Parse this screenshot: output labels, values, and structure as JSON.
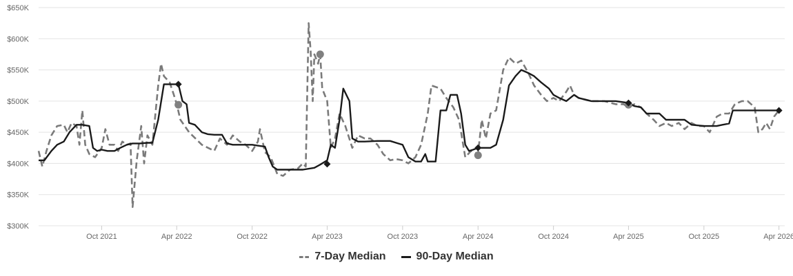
{
  "chart_data": {
    "type": "line",
    "title": "",
    "xlabel": "",
    "ylabel": "",
    "ylim": [
      300000,
      650000
    ],
    "y_ticks": [
      300000,
      350000,
      400000,
      450000,
      500000,
      550000,
      600000,
      650000
    ],
    "y_tick_labels": [
      "$300K",
      "$350K",
      "$400K",
      "$450K",
      "$500K",
      "$550K",
      "$600K",
      "$650K"
    ],
    "xlim": [
      "2021-05-01",
      "2026-04-15"
    ],
    "x_ticks": [
      "2021-10-01",
      "2022-04-01",
      "2022-10-01",
      "2023-04-01",
      "2023-10-01",
      "2024-04-01",
      "2024-10-01",
      "2025-04-01",
      "2025-10-01",
      "2026-04-01"
    ],
    "x_tick_labels": [
      "Oct 2021",
      "Apr 2022",
      "Oct 2022",
      "Apr 2023",
      "Oct 2023",
      "Apr 2024",
      "Oct 2024",
      "Apr 2025",
      "Oct 2025",
      "Apr 2026"
    ],
    "grid": "horizontal",
    "legend_position": "bottom-center",
    "series": [
      {
        "name": "7-Day Median",
        "style": "dashed",
        "color": "#7a7a7a",
        "points": [
          [
            "2021-05-01",
            420000
          ],
          [
            "2021-05-10",
            395000
          ],
          [
            "2021-05-20",
            420000
          ],
          [
            "2021-06-01",
            445000
          ],
          [
            "2021-06-15",
            460000
          ],
          [
            "2021-07-01",
            462000
          ],
          [
            "2021-07-10",
            450000
          ],
          [
            "2021-07-20",
            465000
          ],
          [
            "2021-08-01",
            460000
          ],
          [
            "2021-08-08",
            430000
          ],
          [
            "2021-08-15",
            485000
          ],
          [
            "2021-08-22",
            430000
          ],
          [
            "2021-09-01",
            415000
          ],
          [
            "2021-09-15",
            410000
          ],
          [
            "2021-10-01",
            425000
          ],
          [
            "2021-10-10",
            455000
          ],
          [
            "2021-10-20",
            430000
          ],
          [
            "2021-11-01",
            430000
          ],
          [
            "2021-11-10",
            420000
          ],
          [
            "2021-11-20",
            435000
          ],
          [
            "2021-12-01",
            430000
          ],
          [
            "2021-12-10",
            432000
          ],
          [
            "2021-12-15",
            330000
          ],
          [
            "2021-12-25",
            405000
          ],
          [
            "2022-01-05",
            460000
          ],
          [
            "2022-01-12",
            400000
          ],
          [
            "2022-01-20",
            445000
          ],
          [
            "2022-02-01",
            430000
          ],
          [
            "2022-02-15",
            525000
          ],
          [
            "2022-02-22",
            560000
          ],
          [
            "2022-03-01",
            540000
          ],
          [
            "2022-03-15",
            530000
          ],
          [
            "2022-03-25",
            510000
          ],
          [
            "2022-04-01",
            495000
          ],
          [
            "2022-04-10",
            470000
          ],
          [
            "2022-05-01",
            450000
          ],
          [
            "2022-06-01",
            430000
          ],
          [
            "2022-07-01",
            420000
          ],
          [
            "2022-07-15",
            440000
          ],
          [
            "2022-08-01",
            430000
          ],
          [
            "2022-08-15",
            445000
          ],
          [
            "2022-09-01",
            435000
          ],
          [
            "2022-09-15",
            430000
          ],
          [
            "2022-10-01",
            420000
          ],
          [
            "2022-10-15",
            435000
          ],
          [
            "2022-10-20",
            455000
          ],
          [
            "2022-11-01",
            418000
          ],
          [
            "2022-11-15",
            410000
          ],
          [
            "2022-12-01",
            383000
          ],
          [
            "2022-12-15",
            380000
          ],
          [
            "2023-01-01",
            390000
          ],
          [
            "2023-01-20",
            392000
          ],
          [
            "2023-02-01",
            400000
          ],
          [
            "2023-02-08",
            395000
          ],
          [
            "2023-02-15",
            625000
          ],
          [
            "2023-02-20",
            580000
          ],
          [
            "2023-02-25",
            500000
          ],
          [
            "2023-03-01",
            575000
          ],
          [
            "2023-03-10",
            560000
          ],
          [
            "2023-03-15",
            575000
          ],
          [
            "2023-03-20",
            520000
          ],
          [
            "2023-04-01",
            500000
          ],
          [
            "2023-04-10",
            425000
          ],
          [
            "2023-04-20",
            440000
          ],
          [
            "2023-05-01",
            480000
          ],
          [
            "2023-05-15",
            460000
          ],
          [
            "2023-06-01",
            425000
          ],
          [
            "2023-06-15",
            445000
          ],
          [
            "2023-07-01",
            440000
          ],
          [
            "2023-07-15",
            440000
          ],
          [
            "2023-08-01",
            430000
          ],
          [
            "2023-08-15",
            415000
          ],
          [
            "2023-09-01",
            405000
          ],
          [
            "2023-09-15",
            407000
          ],
          [
            "2023-10-01",
            405000
          ],
          [
            "2023-10-15",
            400000
          ],
          [
            "2023-11-01",
            410000
          ],
          [
            "2023-11-15",
            430000
          ],
          [
            "2023-12-01",
            480000
          ],
          [
            "2023-12-10",
            525000
          ],
          [
            "2024-01-01",
            520000
          ],
          [
            "2024-01-15",
            505000
          ],
          [
            "2024-02-01",
            490000
          ],
          [
            "2024-02-15",
            470000
          ],
          [
            "2024-03-01",
            410000
          ],
          [
            "2024-03-15",
            420000
          ],
          [
            "2024-04-01",
            415000
          ],
          [
            "2024-04-10",
            470000
          ],
          [
            "2024-04-20",
            440000
          ],
          [
            "2024-05-01",
            480000
          ],
          [
            "2024-05-15",
            485000
          ],
          [
            "2024-06-01",
            550000
          ],
          [
            "2024-06-15",
            570000
          ],
          [
            "2024-07-01",
            560000
          ],
          [
            "2024-07-15",
            565000
          ],
          [
            "2024-08-01",
            545000
          ],
          [
            "2024-08-15",
            525000
          ],
          [
            "2024-09-01",
            510000
          ],
          [
            "2024-09-15",
            500000
          ],
          [
            "2024-10-01",
            505000
          ],
          [
            "2024-10-15",
            500000
          ],
          [
            "2024-11-01",
            515000
          ],
          [
            "2024-11-10",
            525000
          ],
          [
            "2024-11-20",
            510000
          ],
          [
            "2024-12-01",
            505000
          ],
          [
            "2025-01-01",
            500000
          ],
          [
            "2025-02-01",
            500000
          ],
          [
            "2025-03-01",
            495000
          ],
          [
            "2025-03-20",
            495000
          ],
          [
            "2025-04-01",
            490000
          ],
          [
            "2025-04-15",
            495000
          ],
          [
            "2025-05-01",
            490000
          ],
          [
            "2025-05-15",
            480000
          ],
          [
            "2025-06-01",
            470000
          ],
          [
            "2025-06-15",
            460000
          ],
          [
            "2025-07-01",
            465000
          ],
          [
            "2025-07-15",
            460000
          ],
          [
            "2025-08-01",
            465000
          ],
          [
            "2025-08-15",
            455000
          ],
          [
            "2025-09-01",
            465000
          ],
          [
            "2025-09-15",
            460000
          ],
          [
            "2025-10-01",
            460000
          ],
          [
            "2025-10-15",
            450000
          ],
          [
            "2025-11-01",
            475000
          ],
          [
            "2025-11-15",
            480000
          ],
          [
            "2025-12-01",
            480000
          ],
          [
            "2025-12-15",
            495000
          ],
          [
            "2026-01-01",
            500000
          ],
          [
            "2026-01-15",
            500000
          ],
          [
            "2026-02-01",
            490000
          ],
          [
            "2026-02-10",
            450000
          ],
          [
            "2026-02-20",
            455000
          ],
          [
            "2026-03-01",
            465000
          ],
          [
            "2026-03-10",
            455000
          ],
          [
            "2026-03-20",
            475000
          ],
          [
            "2026-04-01",
            485000
          ]
        ],
        "markers": [
          [
            "2022-04-05",
            494000
          ],
          [
            "2023-03-15",
            575000
          ],
          [
            "2024-04-01",
            413000
          ],
          [
            "2025-04-01",
            494000
          ]
        ]
      },
      {
        "name": "90-Day Median",
        "style": "solid",
        "color": "#1a1a1a",
        "points": [
          [
            "2021-05-01",
            405000
          ],
          [
            "2021-05-15",
            405000
          ],
          [
            "2021-06-01",
            420000
          ],
          [
            "2021-06-15",
            430000
          ],
          [
            "2021-07-01",
            435000
          ],
          [
            "2021-07-15",
            450000
          ],
          [
            "2021-08-01",
            462000
          ],
          [
            "2021-08-15",
            462000
          ],
          [
            "2021-09-01",
            460000
          ],
          [
            "2021-09-10",
            425000
          ],
          [
            "2021-09-20",
            420000
          ],
          [
            "2021-10-01",
            422000
          ],
          [
            "2021-10-15",
            420000
          ],
          [
            "2021-11-01",
            420000
          ],
          [
            "2021-11-15",
            425000
          ],
          [
            "2021-12-01",
            430000
          ],
          [
            "2021-12-15",
            432000
          ],
          [
            "2022-01-01",
            432000
          ],
          [
            "2022-01-20",
            433000
          ],
          [
            "2022-02-01",
            433000
          ],
          [
            "2022-02-15",
            470000
          ],
          [
            "2022-03-01",
            527000
          ],
          [
            "2022-03-15",
            527000
          ],
          [
            "2022-04-05",
            527000
          ],
          [
            "2022-04-15",
            500000
          ],
          [
            "2022-04-25",
            495000
          ],
          [
            "2022-05-01",
            465000
          ],
          [
            "2022-05-15",
            462000
          ],
          [
            "2022-06-01",
            450000
          ],
          [
            "2022-06-15",
            447000
          ],
          [
            "2022-07-01",
            446000
          ],
          [
            "2022-07-20",
            446000
          ],
          [
            "2022-08-01",
            432000
          ],
          [
            "2022-08-15",
            430000
          ],
          [
            "2022-09-01",
            430000
          ],
          [
            "2022-10-01",
            430000
          ],
          [
            "2022-10-20",
            428000
          ],
          [
            "2022-11-01",
            427000
          ],
          [
            "2022-11-10",
            410000
          ],
          [
            "2022-11-20",
            395000
          ],
          [
            "2022-12-01",
            390000
          ],
          [
            "2023-01-01",
            390000
          ],
          [
            "2023-02-01",
            390000
          ],
          [
            "2023-03-01",
            393000
          ],
          [
            "2023-03-15",
            398000
          ],
          [
            "2023-04-01",
            405000
          ],
          [
            "2023-04-10",
            430000
          ],
          [
            "2023-04-20",
            425000
          ],
          [
            "2023-05-01",
            470000
          ],
          [
            "2023-05-10",
            520000
          ],
          [
            "2023-05-25",
            500000
          ],
          [
            "2023-06-01",
            440000
          ],
          [
            "2023-06-15",
            435000
          ],
          [
            "2023-07-01",
            435000
          ],
          [
            "2023-08-01",
            436000
          ],
          [
            "2023-09-01",
            436000
          ],
          [
            "2023-09-20",
            432000
          ],
          [
            "2023-10-01",
            430000
          ],
          [
            "2023-10-15",
            410000
          ],
          [
            "2023-11-01",
            403000
          ],
          [
            "2023-11-15",
            403000
          ],
          [
            "2023-11-25",
            415000
          ],
          [
            "2023-12-01",
            403000
          ],
          [
            "2023-12-20",
            403000
          ],
          [
            "2024-01-01",
            485000
          ],
          [
            "2024-01-15",
            485000
          ],
          [
            "2024-01-25",
            510000
          ],
          [
            "2024-02-10",
            510000
          ],
          [
            "2024-02-20",
            480000
          ],
          [
            "2024-03-01",
            430000
          ],
          [
            "2024-03-10",
            420000
          ],
          [
            "2024-03-20",
            422000
          ],
          [
            "2024-04-01",
            425000
          ],
          [
            "2024-05-01",
            425000
          ],
          [
            "2024-05-15",
            430000
          ],
          [
            "2024-06-01",
            470000
          ],
          [
            "2024-06-15",
            525000
          ],
          [
            "2024-07-01",
            540000
          ],
          [
            "2024-07-15",
            550000
          ],
          [
            "2024-08-01",
            545000
          ],
          [
            "2024-08-15",
            540000
          ],
          [
            "2024-09-01",
            530000
          ],
          [
            "2024-09-20",
            520000
          ],
          [
            "2024-10-01",
            510000
          ],
          [
            "2024-10-15",
            505000
          ],
          [
            "2024-11-01",
            500000
          ],
          [
            "2024-11-20",
            510000
          ],
          [
            "2024-12-01",
            505000
          ],
          [
            "2025-01-01",
            500000
          ],
          [
            "2025-02-01",
            500000
          ],
          [
            "2025-03-01",
            500000
          ],
          [
            "2025-04-01",
            497000
          ],
          [
            "2025-04-15",
            492000
          ],
          [
            "2025-05-01",
            490000
          ],
          [
            "2025-05-15",
            480000
          ],
          [
            "2025-06-15",
            480000
          ],
          [
            "2025-07-01",
            470000
          ],
          [
            "2025-08-01",
            470000
          ],
          [
            "2025-08-15",
            470000
          ],
          [
            "2025-09-01",
            462000
          ],
          [
            "2025-10-01",
            460000
          ],
          [
            "2025-11-01",
            460000
          ],
          [
            "2025-11-15",
            462000
          ],
          [
            "2025-12-01",
            464000
          ],
          [
            "2025-12-10",
            485000
          ],
          [
            "2026-01-01",
            485000
          ],
          [
            "2026-02-01",
            485000
          ],
          [
            "2026-03-01",
            485000
          ],
          [
            "2026-04-01",
            485000
          ]
        ],
        "markers": [
          [
            "2022-04-05",
            527000
          ],
          [
            "2023-04-01",
            399000
          ],
          [
            "2024-04-01",
            425000
          ],
          [
            "2025-04-01",
            497000
          ],
          [
            "2026-04-01",
            485000
          ]
        ]
      }
    ]
  }
}
